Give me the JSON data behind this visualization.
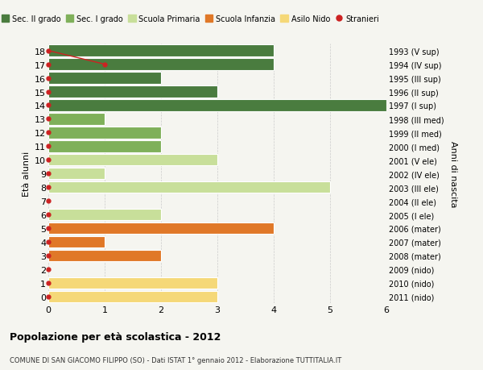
{
  "ages": [
    18,
    17,
    16,
    15,
    14,
    13,
    12,
    11,
    10,
    9,
    8,
    7,
    6,
    5,
    4,
    3,
    2,
    1,
    0
  ],
  "years": [
    "1993 (V sup)",
    "1994 (IV sup)",
    "1995 (III sup)",
    "1996 (II sup)",
    "1997 (I sup)",
    "1998 (III med)",
    "1999 (II med)",
    "2000 (I med)",
    "2001 (V ele)",
    "2002 (IV ele)",
    "2003 (III ele)",
    "2004 (II ele)",
    "2005 (I ele)",
    "2006 (mater)",
    "2007 (mater)",
    "2008 (mater)",
    "2009 (nido)",
    "2010 (nido)",
    "2011 (nido)"
  ],
  "bar_values": [
    4,
    4,
    2,
    3,
    6,
    1,
    2,
    2,
    3,
    1,
    5,
    0,
    2,
    4,
    1,
    2,
    0,
    3,
    3
  ],
  "bar_colors": [
    "#4a7c3f",
    "#4a7c3f",
    "#4a7c3f",
    "#4a7c3f",
    "#4a7c3f",
    "#7fb05a",
    "#7fb05a",
    "#7fb05a",
    "#c8df9a",
    "#c8df9a",
    "#c8df9a",
    "#c8df9a",
    "#c8df9a",
    "#e07828",
    "#e07828",
    "#e07828",
    "#f5d878",
    "#f5d878",
    "#f5d878"
  ],
  "legend_labels": [
    "Sec. II grado",
    "Sec. I grado",
    "Scuola Primaria",
    "Scuola Infanzia",
    "Asilo Nido",
    "Stranieri"
  ],
  "legend_colors": [
    "#4a7c3f",
    "#7fb05a",
    "#c8df9a",
    "#e07828",
    "#f5d878",
    "#cc2222"
  ],
  "xlabel": "Età alunni",
  "ylabel_left": "Età alunni",
  "ylabel_right": "Anni di nascita",
  "title": "Popolazione per età scolastica - 2012",
  "subtitle": "COMUNE DI SAN GIACOMO FILIPPO (SO) - Dati ISTAT 1° gennaio 2012 - Elaborazione TUTTITALIA.IT",
  "xlim": [
    0,
    6
  ],
  "ylim": [
    -0.5,
    18.5
  ],
  "bg_color": "#f5f5f0",
  "grid_color": "#cccccc",
  "stranieri_color": "#cc2222",
  "bar_height": 0.85,
  "stranieri_line_x": [
    0,
    1
  ],
  "stranieri_line_y": [
    18,
    17
  ]
}
